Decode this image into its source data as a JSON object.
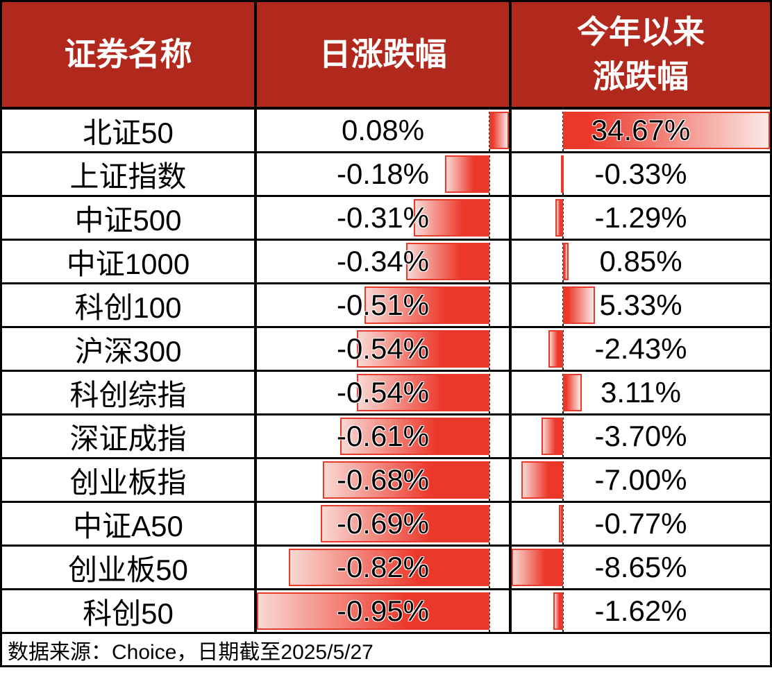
{
  "table": {
    "header": {
      "security": "证券名称",
      "daily": "日涨跌幅",
      "ytd_line1": "今年以来",
      "ytd_line2": "涨跌幅"
    },
    "bar_scales": {
      "daily": {
        "min": -0.95,
        "max": 0.08
      },
      "ytd": {
        "min": -8.65,
        "max": 34.67
      }
    },
    "rows": [
      {
        "name": "北证50",
        "daily_value": 0.08,
        "daily_label": "0.08%",
        "ytd_value": 34.67,
        "ytd_label": "34.67%"
      },
      {
        "name": "上证指数",
        "daily_value": -0.18,
        "daily_label": "-0.18%",
        "ytd_value": -0.33,
        "ytd_label": "-0.33%"
      },
      {
        "name": "中证500",
        "daily_value": -0.31,
        "daily_label": "-0.31%",
        "ytd_value": -1.29,
        "ytd_label": "-1.29%"
      },
      {
        "name": "中证1000",
        "daily_value": -0.34,
        "daily_label": "-0.34%",
        "ytd_value": 0.85,
        "ytd_label": "0.85%"
      },
      {
        "name": "科创100",
        "daily_value": -0.51,
        "daily_label": "-0.51%",
        "ytd_value": 5.33,
        "ytd_label": "5.33%"
      },
      {
        "name": "沪深300",
        "daily_value": -0.54,
        "daily_label": "-0.54%",
        "ytd_value": -2.43,
        "ytd_label": "-2.43%"
      },
      {
        "name": "科创综指",
        "daily_value": -0.54,
        "daily_label": "-0.54%",
        "ytd_value": 3.11,
        "ytd_label": "3.11%"
      },
      {
        "name": "深证成指",
        "daily_value": -0.61,
        "daily_label": "-0.61%",
        "ytd_value": -3.7,
        "ytd_label": "-3.70%"
      },
      {
        "name": "创业板指",
        "daily_value": -0.68,
        "daily_label": "-0.68%",
        "ytd_value": -7.0,
        "ytd_label": "-7.00%"
      },
      {
        "name": "中证A50",
        "daily_value": -0.69,
        "daily_label": "-0.69%",
        "ytd_value": -0.77,
        "ytd_label": "-0.77%"
      },
      {
        "name": "创业板50",
        "daily_value": -0.82,
        "daily_label": "-0.82%",
        "ytd_value": -8.65,
        "ytd_label": "-8.65%"
      },
      {
        "name": "科创50",
        "daily_value": -0.95,
        "daily_label": "-0.95%",
        "ytd_value": -1.62,
        "ytd_label": "-1.62%"
      }
    ]
  },
  "footer": {
    "source_text": "数据来源：Choice，日期截至2025/5/27"
  },
  "colors": {
    "header_bg": "#B1291C",
    "header_text": "#FFFFFF",
    "bar_solid": "#EC382B",
    "bar_light": "#F9D8D3",
    "bar_light2": "#FBE9E6",
    "bar_border": "#E63A2B",
    "grid": "#000000",
    "text": "#000000"
  },
  "chart_data": {
    "type": "table",
    "title": "指数日涨跌幅与今年以来涨跌幅",
    "columns": [
      "证券名称",
      "日涨跌幅",
      "今年以来涨跌幅"
    ],
    "categories": [
      "北证50",
      "上证指数",
      "中证500",
      "中证1000",
      "科创100",
      "沪深300",
      "科创综指",
      "深证成指",
      "创业板指",
      "中证A50",
      "创业板50",
      "科创50"
    ],
    "series": [
      {
        "name": "日涨跌幅",
        "unit": "%",
        "values": [
          0.08,
          -0.18,
          -0.31,
          -0.34,
          -0.51,
          -0.54,
          -0.54,
          -0.61,
          -0.68,
          -0.69,
          -0.82,
          -0.95
        ]
      },
      {
        "name": "今年以来涨跌幅",
        "unit": "%",
        "values": [
          34.67,
          -0.33,
          -1.29,
          0.85,
          5.33,
          -2.43,
          3.11,
          -3.7,
          -7.0,
          -0.77,
          -8.65,
          -1.62
        ]
      }
    ],
    "layout_hints": {
      "data_bars": true,
      "bar_axis_range_daily": [
        -0.95,
        0.08
      ],
      "bar_axis_range_ytd": [
        -8.65,
        34.67
      ],
      "bar_gradient": "solid red at zero axis fading to light pink at bar tip",
      "zero_axis_style": "dashed vertical line"
    },
    "annotations": [
      "数据来源：Choice，日期截至2025/5/27"
    ]
  }
}
